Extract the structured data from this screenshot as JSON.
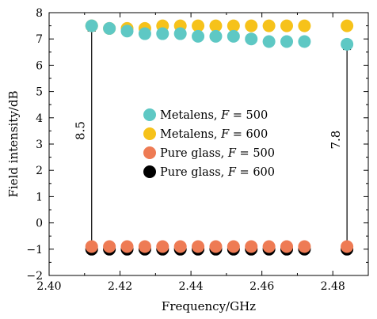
{
  "chart_data": {
    "type": "scatter",
    "xlabel": "Frequency/GHz",
    "ylabel": "Field intensity/dB",
    "xlim": [
      2.4,
      2.49
    ],
    "ylim": [
      -2,
      8
    ],
    "xticks": [
      "2.40",
      "2.42",
      "2.44",
      "2.46",
      "2.48"
    ],
    "yticks": [
      "8",
      "7",
      "6",
      "5",
      "4",
      "3",
      "2",
      "1",
      "0",
      "−1",
      "−2"
    ],
    "grid": false,
    "legend_position": "center",
    "series": [
      {
        "name": "Metalens, F = 500",
        "color": "#5ec8c4",
        "x": [
          2.412,
          2.417,
          2.422,
          2.427,
          2.432,
          2.437,
          2.442,
          2.447,
          2.452,
          2.457,
          2.462,
          2.467,
          2.472,
          2.484
        ],
        "y": [
          7.5,
          7.4,
          7.3,
          7.2,
          7.2,
          7.2,
          7.1,
          7.1,
          7.1,
          7.0,
          6.9,
          6.9,
          6.9,
          6.8
        ]
      },
      {
        "name": "Metalens, F = 600",
        "color": "#f6c21a",
        "x": [
          2.412,
          2.417,
          2.422,
          2.427,
          2.432,
          2.437,
          2.442,
          2.447,
          2.452,
          2.457,
          2.462,
          2.467,
          2.472,
          2.484
        ],
        "y": [
          7.5,
          7.4,
          7.4,
          7.4,
          7.5,
          7.5,
          7.5,
          7.5,
          7.5,
          7.5,
          7.5,
          7.5,
          7.5,
          7.5
        ]
      },
      {
        "name": "Pure glass, F = 500",
        "color": "#ee7b54",
        "x": [
          2.412,
          2.417,
          2.422,
          2.427,
          2.432,
          2.437,
          2.442,
          2.447,
          2.452,
          2.457,
          2.462,
          2.467,
          2.472,
          2.484
        ],
        "y": [
          -0.9,
          -0.9,
          -0.9,
          -0.9,
          -0.9,
          -0.9,
          -0.9,
          -0.9,
          -0.9,
          -0.9,
          -0.9,
          -0.9,
          -0.9,
          -0.9
        ]
      },
      {
        "name": "Pure glass, F = 600",
        "color": "#000000",
        "x": [
          2.412,
          2.417,
          2.422,
          2.427,
          2.432,
          2.437,
          2.442,
          2.447,
          2.452,
          2.457,
          2.462,
          2.467,
          2.472,
          2.484
        ],
        "y": [
          -1.0,
          -1.0,
          -1.0,
          -1.0,
          -1.0,
          -1.0,
          -1.0,
          -1.0,
          -1.0,
          -1.0,
          -1.0,
          -1.0,
          -1.0,
          -1.0
        ]
      }
    ],
    "legend": [
      {
        "prefix": "Metalens, ",
        "var": "F",
        "eq": " = 500"
      },
      {
        "prefix": "Metalens, ",
        "var": "F",
        "eq": " = 600"
      },
      {
        "prefix": "Pure glass, ",
        "var": "F",
        "eq": " = 500"
      },
      {
        "prefix": "Pure glass, ",
        "var": "F",
        "eq": " = 600"
      }
    ],
    "annotations": [
      {
        "text": "8.5",
        "x": 2.412,
        "y_from": -1.0,
        "y_to": 7.3
      },
      {
        "text": "7.8",
        "x": 2.484,
        "y_from": -1.0,
        "y_to": 6.6
      }
    ]
  }
}
